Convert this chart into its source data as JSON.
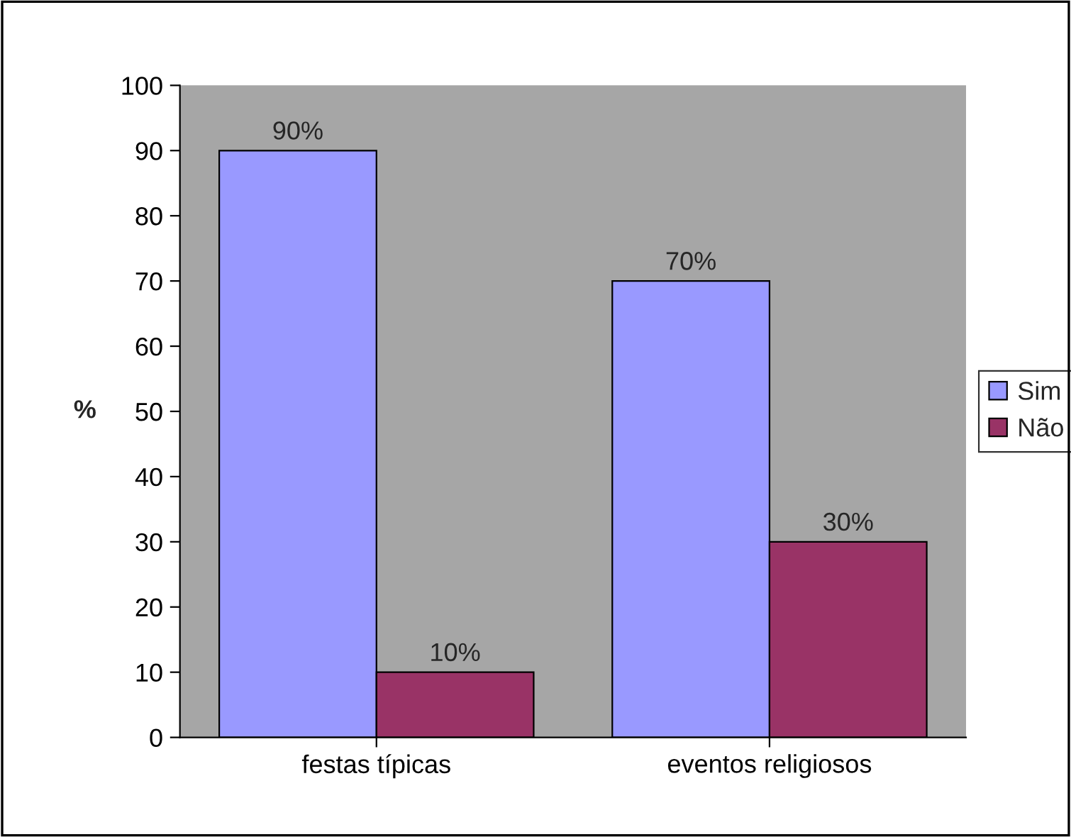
{
  "chart_data": {
    "type": "bar",
    "ylabel": "%",
    "categories": [
      "festas típicas",
      "eventos religiosos"
    ],
    "series": [
      {
        "name": "Sim",
        "color": "#9999ff",
        "values": [
          90,
          70
        ],
        "value_labels": [
          "90%",
          "70%"
        ]
      },
      {
        "name": "Não",
        "color": "#993366",
        "values": [
          10,
          30
        ],
        "value_labels": [
          "10%",
          "30%"
        ]
      }
    ],
    "ylim": [
      0,
      100
    ],
    "yticks": [
      0,
      10,
      20,
      30,
      40,
      50,
      60,
      70,
      80,
      90,
      100
    ],
    "legend": "right"
  }
}
